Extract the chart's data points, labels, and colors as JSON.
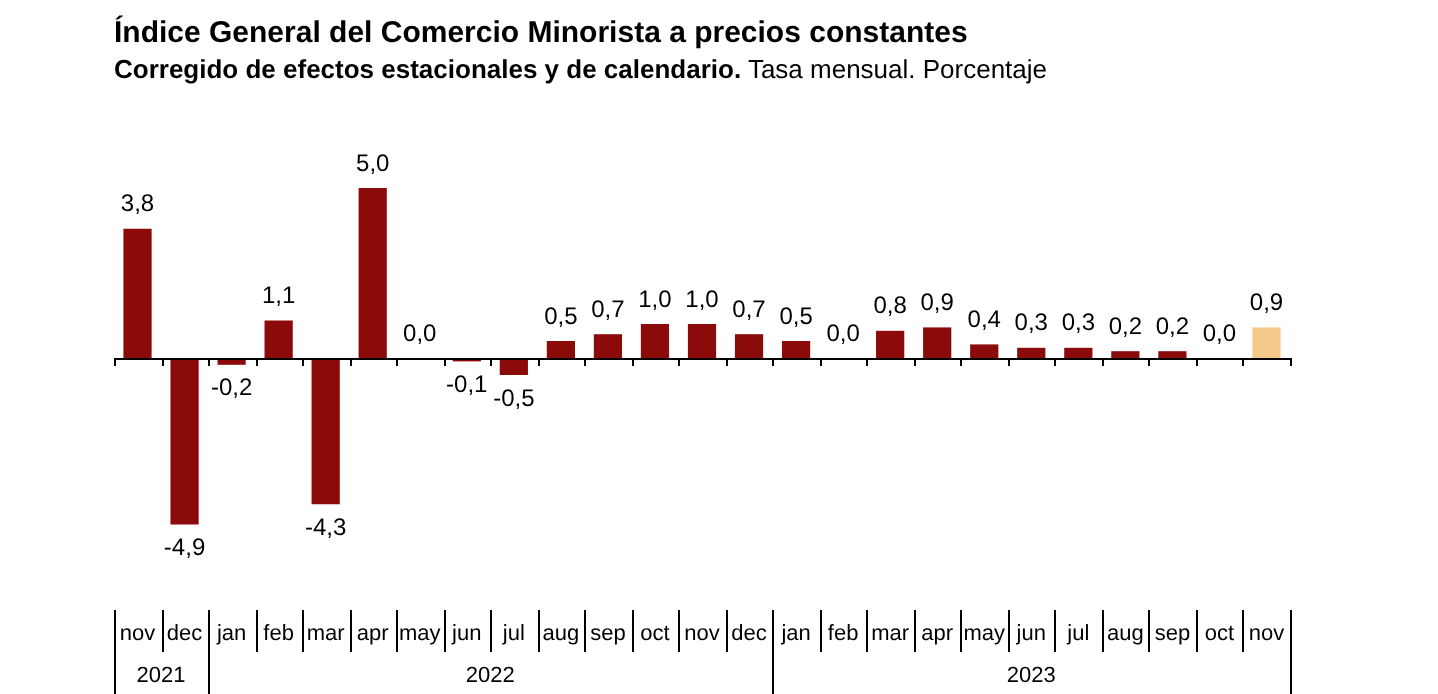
{
  "chart_data": {
    "type": "bar",
    "title": "Índice General del Comercio Minorista a precios constantes",
    "subtitle": "Corregido de efectos estacionales y de calendario. Tasa mensual. Porcentaje",
    "categories": [
      "nov",
      "dec",
      "jan",
      "feb",
      "mar",
      "apr",
      "may",
      "jun",
      "jul",
      "aug",
      "sep",
      "oct",
      "nov",
      "dec",
      "jan",
      "feb",
      "mar",
      "apr",
      "may",
      "jun",
      "jul",
      "aug",
      "sep",
      "oct",
      "nov"
    ],
    "values": [
      3.8,
      -4.9,
      -0.2,
      1.1,
      -4.3,
      5.0,
      0.0,
      -0.1,
      -0.5,
      0.5,
      0.7,
      1.0,
      1.0,
      0.7,
      0.5,
      0.0,
      0.8,
      0.9,
      0.4,
      0.3,
      0.3,
      0.2,
      0.2,
      0.0,
      0.9
    ],
    "colors": [
      "#8b0a0a",
      "#8b0a0a",
      "#8b0a0a",
      "#8b0a0a",
      "#8b0a0a",
      "#8b0a0a",
      "#8b0a0a",
      "#8b0a0a",
      "#8b0a0a",
      "#8b0a0a",
      "#8b0a0a",
      "#8b0a0a",
      "#8b0a0a",
      "#8b0a0a",
      "#8b0a0a",
      "#8b0a0a",
      "#8b0a0a",
      "#8b0a0a",
      "#8b0a0a",
      "#8b0a0a",
      "#8b0a0a",
      "#8b0a0a",
      "#8b0a0a",
      "#8b0a0a",
      "#f5c98a"
    ],
    "value_labels": [
      "3,8",
      "-4,9",
      "-0,2",
      "1,1",
      "-4,3",
      "5,0",
      "0,0",
      "-0,1",
      "-0,5",
      "0,5",
      "0,7",
      "1,0",
      "1,0",
      "0,7",
      "0,5",
      "0,0",
      "0,8",
      "0,9",
      "0,4",
      "0,3",
      "0,3",
      "0,2",
      "0,2",
      "0,0",
      "0,9"
    ],
    "annotations": [
      "2021",
      "2022",
      "2023"
    ],
    "legend": false
  }
}
